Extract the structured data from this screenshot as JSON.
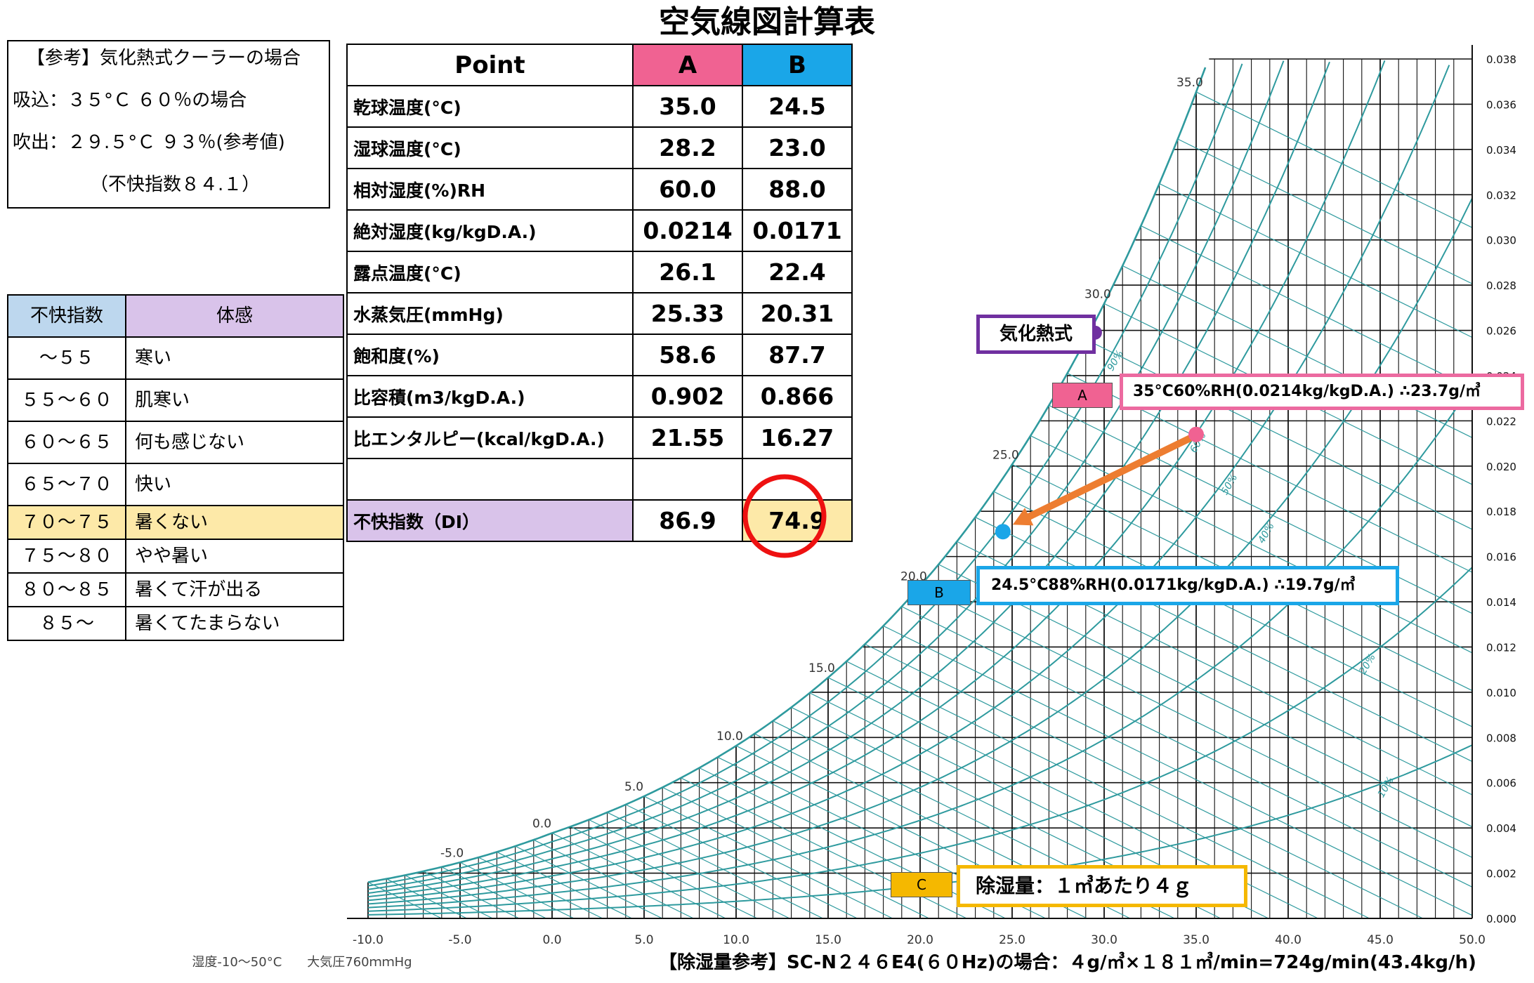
{
  "title": "空気線図計算表",
  "reference": {
    "lines": [
      "【参考】気化熱式クーラーの場合",
      "吸込：３５°Ｃ ６０％の場合",
      "吹出：２９.５°Ｃ ９３％(参考値)",
      "（不快指数８４.１）"
    ]
  },
  "di_table": {
    "headers": [
      "不快指数",
      "体感"
    ],
    "rows": [
      {
        "range": "～５５",
        "feel": "寒い"
      },
      {
        "range": "５５～６０",
        "feel": "肌寒い"
      },
      {
        "range": "６０～６５",
        "feel": "何も感じない"
      },
      {
        "range": "６５～７０",
        "feel": "快い"
      },
      {
        "range": "７０～７５",
        "feel": "暑くない"
      },
      {
        "range": "７５～８０",
        "feel": "やや暑い"
      },
      {
        "range": "８０～８５",
        "feel": "暑くて汗が出る"
      },
      {
        "range": "８５～",
        "feel": "暑くてたまらない"
      }
    ],
    "highlight_index": 4
  },
  "main_table": {
    "header": {
      "point": "Point",
      "a": "A",
      "b": "B"
    },
    "rows": [
      {
        "label": "乾球温度(°C)",
        "a": "35.0",
        "b": "24.5"
      },
      {
        "label": "湿球温度(°C)",
        "a": "28.2",
        "b": "23.0"
      },
      {
        "label": "相対湿度(%)RH",
        "a": "60.0",
        "b": "88.0"
      },
      {
        "label": "絶対湿度(kg/kgD.A.)",
        "a": "0.0214",
        "b": "0.0171"
      },
      {
        "label": "露点温度(°C)",
        "a": "26.1",
        "b": "22.4"
      },
      {
        "label": "水蒸気圧(mmHg)",
        "a": "25.33",
        "b": "20.31"
      },
      {
        "label": "飽和度(%)",
        "a": "58.6",
        "b": "87.7"
      },
      {
        "label": "比容積(m3/kgD.A.)",
        "a": "0.902",
        "b": "0.866"
      },
      {
        "label": "比エンタルピー(kcal/kgD.A.)",
        "a": "21.55",
        "b": "16.27"
      },
      {
        "label": "",
        "a": "",
        "b": ""
      }
    ],
    "di_row": {
      "label": "不快指数（DI）",
      "a": "86.9",
      "b": "74.9"
    }
  },
  "colors": {
    "a": "#f06292",
    "b": "#1aa6e8",
    "grid": "#2e9a9e",
    "purple": "#7030a0",
    "pink_border": "#ec6aa0",
    "blue_border": "#1aa6e8",
    "gold": "#f5b800",
    "c_marker": "#f5b800",
    "arrow": "#ed7d31",
    "circle": "#ee1111",
    "highlight": "#fde9a8",
    "di_header_a": "#bdd7ee",
    "di_header_b": "#d9c3ea"
  },
  "chart_data": {
    "type": "scatter",
    "xlim": [
      -10,
      50
    ],
    "ylim": [
      0,
      0.038
    ],
    "x_ticks": [
      "-10.0",
      "-5.0",
      "0.0",
      "5.0",
      "10.0",
      "15.0",
      "20.0",
      "25.0",
      "30.0",
      "35.0",
      "40.0",
      "45.0",
      "50.0"
    ],
    "y_ticks": [
      "0.000",
      "0.002",
      "0.004",
      "0.006",
      "0.008",
      "0.010",
      "0.012",
      "0.014",
      "0.016",
      "0.018",
      "0.020",
      "0.022",
      "0.024",
      "0.026",
      "0.028",
      "0.030",
      "0.032",
      "0.034",
      "0.036",
      "0.038"
    ],
    "wet_bulb_labels": [
      "-5.0",
      "0.0",
      "5.0",
      "10.0",
      "15.0",
      "20.0",
      "25.0",
      "30.0",
      "35.0"
    ],
    "rh_curves": [
      10,
      20,
      30,
      40,
      50,
      60,
      70,
      80,
      90,
      100
    ],
    "rh_labels": [
      "10%",
      "20%",
      "30%",
      "40%",
      "50%",
      "60%",
      "80%",
      "90%"
    ],
    "points": [
      {
        "name": "A",
        "db": 35.0,
        "w": 0.0214
      },
      {
        "name": "B",
        "db": 24.5,
        "w": 0.0171
      },
      {
        "name": "気化熱式",
        "db": 29.5,
        "w": 0.0259
      }
    ],
    "footnote_left": "湿度-10～50°C　　大気圧760ｍｍHg"
  },
  "labels": {
    "evap": "気化熱式",
    "marker_a": "A",
    "marker_b": "B",
    "marker_c": "C",
    "callout_a": "35°C60%RH(0.0214kg/kgD.A.) ∴23.7g/㎥",
    "callout_b": "24.5°C88%RH(0.0171kg/kgD.A.) ∴19.7g/㎥",
    "callout_c": "除湿量：１㎥あたり４ｇ",
    "bottom_note": "【除湿量参考】SC-N２４６E4(６０Hz)の場合：４g/㎥×１８１㎥/min=724g/min(43.4kg/h)"
  }
}
